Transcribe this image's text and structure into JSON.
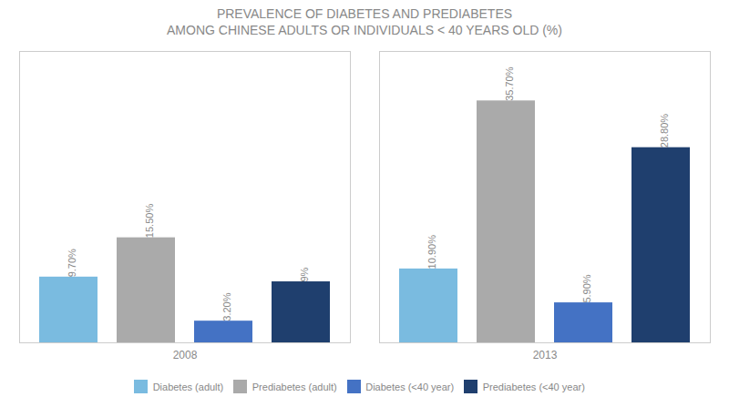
{
  "chart_data": {
    "type": "bar",
    "title": "PREVALENCE OF DIABETES AND PREDIABETES\nAMONG CHINESE ADULTS OR INDIVIDUALS < 40 YEARS OLD (%)",
    "categories": [
      "2008",
      "2013"
    ],
    "series": [
      {
        "name": "Diabetes (adult)",
        "color": "#7abbe0",
        "values": [
          9.7,
          10.9
        ],
        "value_labels": [
          "9.70%",
          "10.90%"
        ]
      },
      {
        "name": "Prediabetes (adult)",
        "color": "#aaaaaa",
        "values": [
          15.5,
          35.7
        ],
        "value_labels": [
          "15.50%",
          "35.70%"
        ]
      },
      {
        "name": "Diabetes (<40 year)",
        "color": "#4472c4",
        "values": [
          3.2,
          5.9
        ],
        "value_labels": [
          "3.20%",
          "5.90%"
        ]
      },
      {
        "name": "Prediabetes (<40 year)",
        "color": "#1f3f6e",
        "values": [
          9.0,
          28.8
        ],
        "value_labels": [
          "9%",
          "28.80%"
        ]
      }
    ],
    "ylim": [
      0,
      43
    ],
    "tick_labels": "x",
    "data_labels": true,
    "legend": "bottom"
  }
}
